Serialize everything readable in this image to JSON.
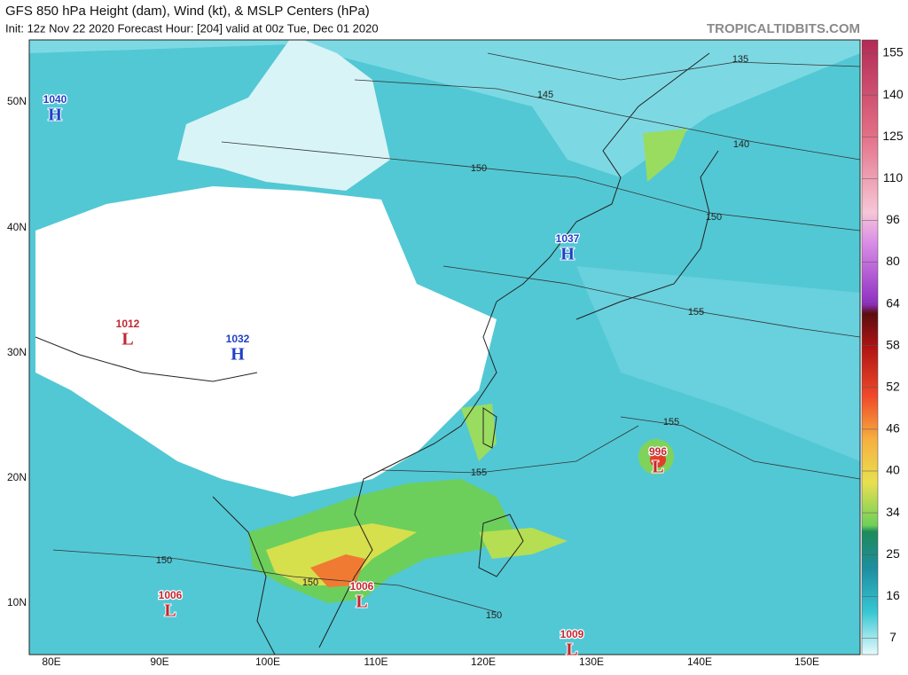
{
  "header": {
    "title": "GFS 850 hPa Height (dam), Wind (kt), & MSLP Centers (hPa)",
    "subtitle": "Init: 12z Nov 22 2020   Forecast Hour: [204]   valid at 00z Tue, Dec 01 2020",
    "credit": "TROPICALTIDBITS.COM"
  },
  "colorbar": {
    "labels": [
      "155",
      "140",
      "125",
      "110",
      "96",
      "80",
      "64",
      "58",
      "52",
      "46",
      "40",
      "34",
      "25",
      "16",
      "7"
    ]
  },
  "latitude_labels": [
    "50N",
    "40N",
    "30N",
    "20N",
    "10N"
  ],
  "longitude_labels": [
    "80E",
    "90E",
    "100E",
    "110E",
    "120E",
    "130E",
    "140E",
    "150E"
  ],
  "pressure_centers": [
    {
      "value": "1040",
      "symbol": "H"
    },
    {
      "value": "1037",
      "symbol": "H"
    },
    {
      "value": "1012",
      "symbol": "L"
    },
    {
      "value": "1032",
      "symbol": "H"
    },
    {
      "value": "996",
      "symbol": "L"
    },
    {
      "value": "1006",
      "symbol": "L"
    },
    {
      "value": "1006",
      "symbol": "L"
    },
    {
      "value": "1009",
      "symbol": "L"
    }
  ],
  "contour_labels": [
    "135",
    "145",
    "140",
    "150",
    "150",
    "155",
    "155",
    "155",
    "150",
    "150",
    "150"
  ]
}
